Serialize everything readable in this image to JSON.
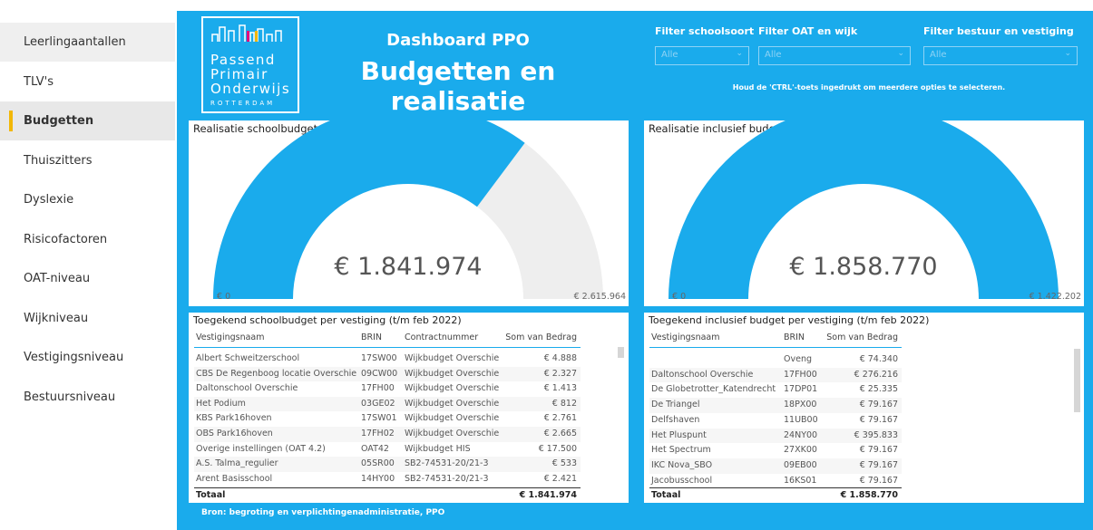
{
  "nav": [
    "Leerlingaantallen",
    "TLV's",
    "Budgetten",
    "Thuiszitters",
    "Dyslexie",
    "Risicofactoren",
    "OAT-niveau",
    "Wijkniveau",
    "Vestigingsniveau",
    "Bestuursniveau"
  ],
  "logo": {
    "lines": [
      "Passend",
      "Primair",
      "Onderwijs"
    ],
    "city": "ROTTERDAM"
  },
  "header": {
    "subtitle": "Dashboard PPO",
    "title": "Budgetten en realisatie"
  },
  "filters": [
    {
      "label": "Filter schoolsoort",
      "value": "Alle"
    },
    {
      "label": "Filter OAT en wijk",
      "value": "Alle"
    },
    {
      "label": "Filter bestuur en vestiging",
      "value": "Alle"
    }
  ],
  "filter_note": "Houd de 'CTRL'-toets ingedrukt om meerdere opties te selecteren.",
  "gauges": [
    {
      "title": "Realisatie schoolbudget (t/m feb 2022)",
      "value": 1841974,
      "value_label": "€ 1.841.974",
      "min": 0,
      "min_label": "€ 0",
      "max": 2615964,
      "max_label": "€ 2.615.964"
    },
    {
      "title": "Realisatie inclusief budget (t/m feb 2022)",
      "value": 1858770,
      "value_label": "€ 1.858.770",
      "min": 0,
      "min_label": "€ 0",
      "max": 1422202,
      "max_label": "€ 1.422.202"
    }
  ],
  "tables": [
    {
      "title": "Toegekend schoolbudget per vestiging (t/m feb 2022)",
      "columns": [
        "Vestigingsnaam",
        "BRIN",
        "Contractnummer",
        "Som van Bedrag"
      ],
      "rows": [
        [
          "Albert Schweitzerschool",
          "17SW00",
          "Wijkbudget Overschie",
          "€ 4.888"
        ],
        [
          "CBS De Regenboog locatie Overschie",
          "09CW00",
          "Wijkbudget Overschie",
          "€ 2.327"
        ],
        [
          "Daltonschool Overschie",
          "17FH00",
          "Wijkbudget Overschie",
          "€ 1.413"
        ],
        [
          "Het Podium",
          "03GE02",
          "Wijkbudget Overschie",
          "€ 812"
        ],
        [
          "KBS Park16hoven",
          "17SW01",
          "Wijkbudget Overschie",
          "€ 2.761"
        ],
        [
          "OBS Park16hoven",
          "17FH02",
          "Wijkbudget Overschie",
          "€ 2.665"
        ],
        [
          "Overige instellingen (OAT 4.2)",
          "OAT42",
          "Wijkbudget HIS",
          "€ 17.500"
        ],
        [
          "A.S. Talma_regulier",
          "05SR00",
          "SB2-74531-20/21-3",
          "€ 533"
        ],
        [
          "Arent Basisschool",
          "14HY00",
          "SB2-74531-20/21-3",
          "€ 2.421"
        ]
      ],
      "total": [
        "Totaal",
        "€ 1.841.974"
      ]
    },
    {
      "title": "Toegekend inclusief budget per vestiging (t/m feb 2022)",
      "columns": [
        "Vestigingsnaam",
        "BRIN",
        "Som van Bedrag"
      ],
      "rows": [
        [
          null,
          "Oveng",
          "€ 74.340"
        ],
        [
          "Daltonschool Overschie",
          "17FH00",
          "€ 276.216"
        ],
        [
          "De Globetrotter_Katendrecht",
          "17DP01",
          "€ 25.335"
        ],
        [
          "De Triangel",
          "18PX00",
          "€ 79.167"
        ],
        [
          "Delfshaven",
          "11UB00",
          "€ 79.167"
        ],
        [
          "Het Pluspunt",
          "24NY00",
          "€ 395.833"
        ],
        [
          "Het Spectrum",
          "27XK00",
          "€ 79.167"
        ],
        [
          "IKC Nova_SBO",
          "09EB00",
          "€ 79.167"
        ],
        [
          "Jacobusschool",
          "16KS01",
          "€ 79.167"
        ]
      ],
      "total": [
        "Totaal",
        "€ 1.858.770"
      ]
    }
  ],
  "footer": "Bron: begroting en verplichtingenadministratie, PPO"
}
